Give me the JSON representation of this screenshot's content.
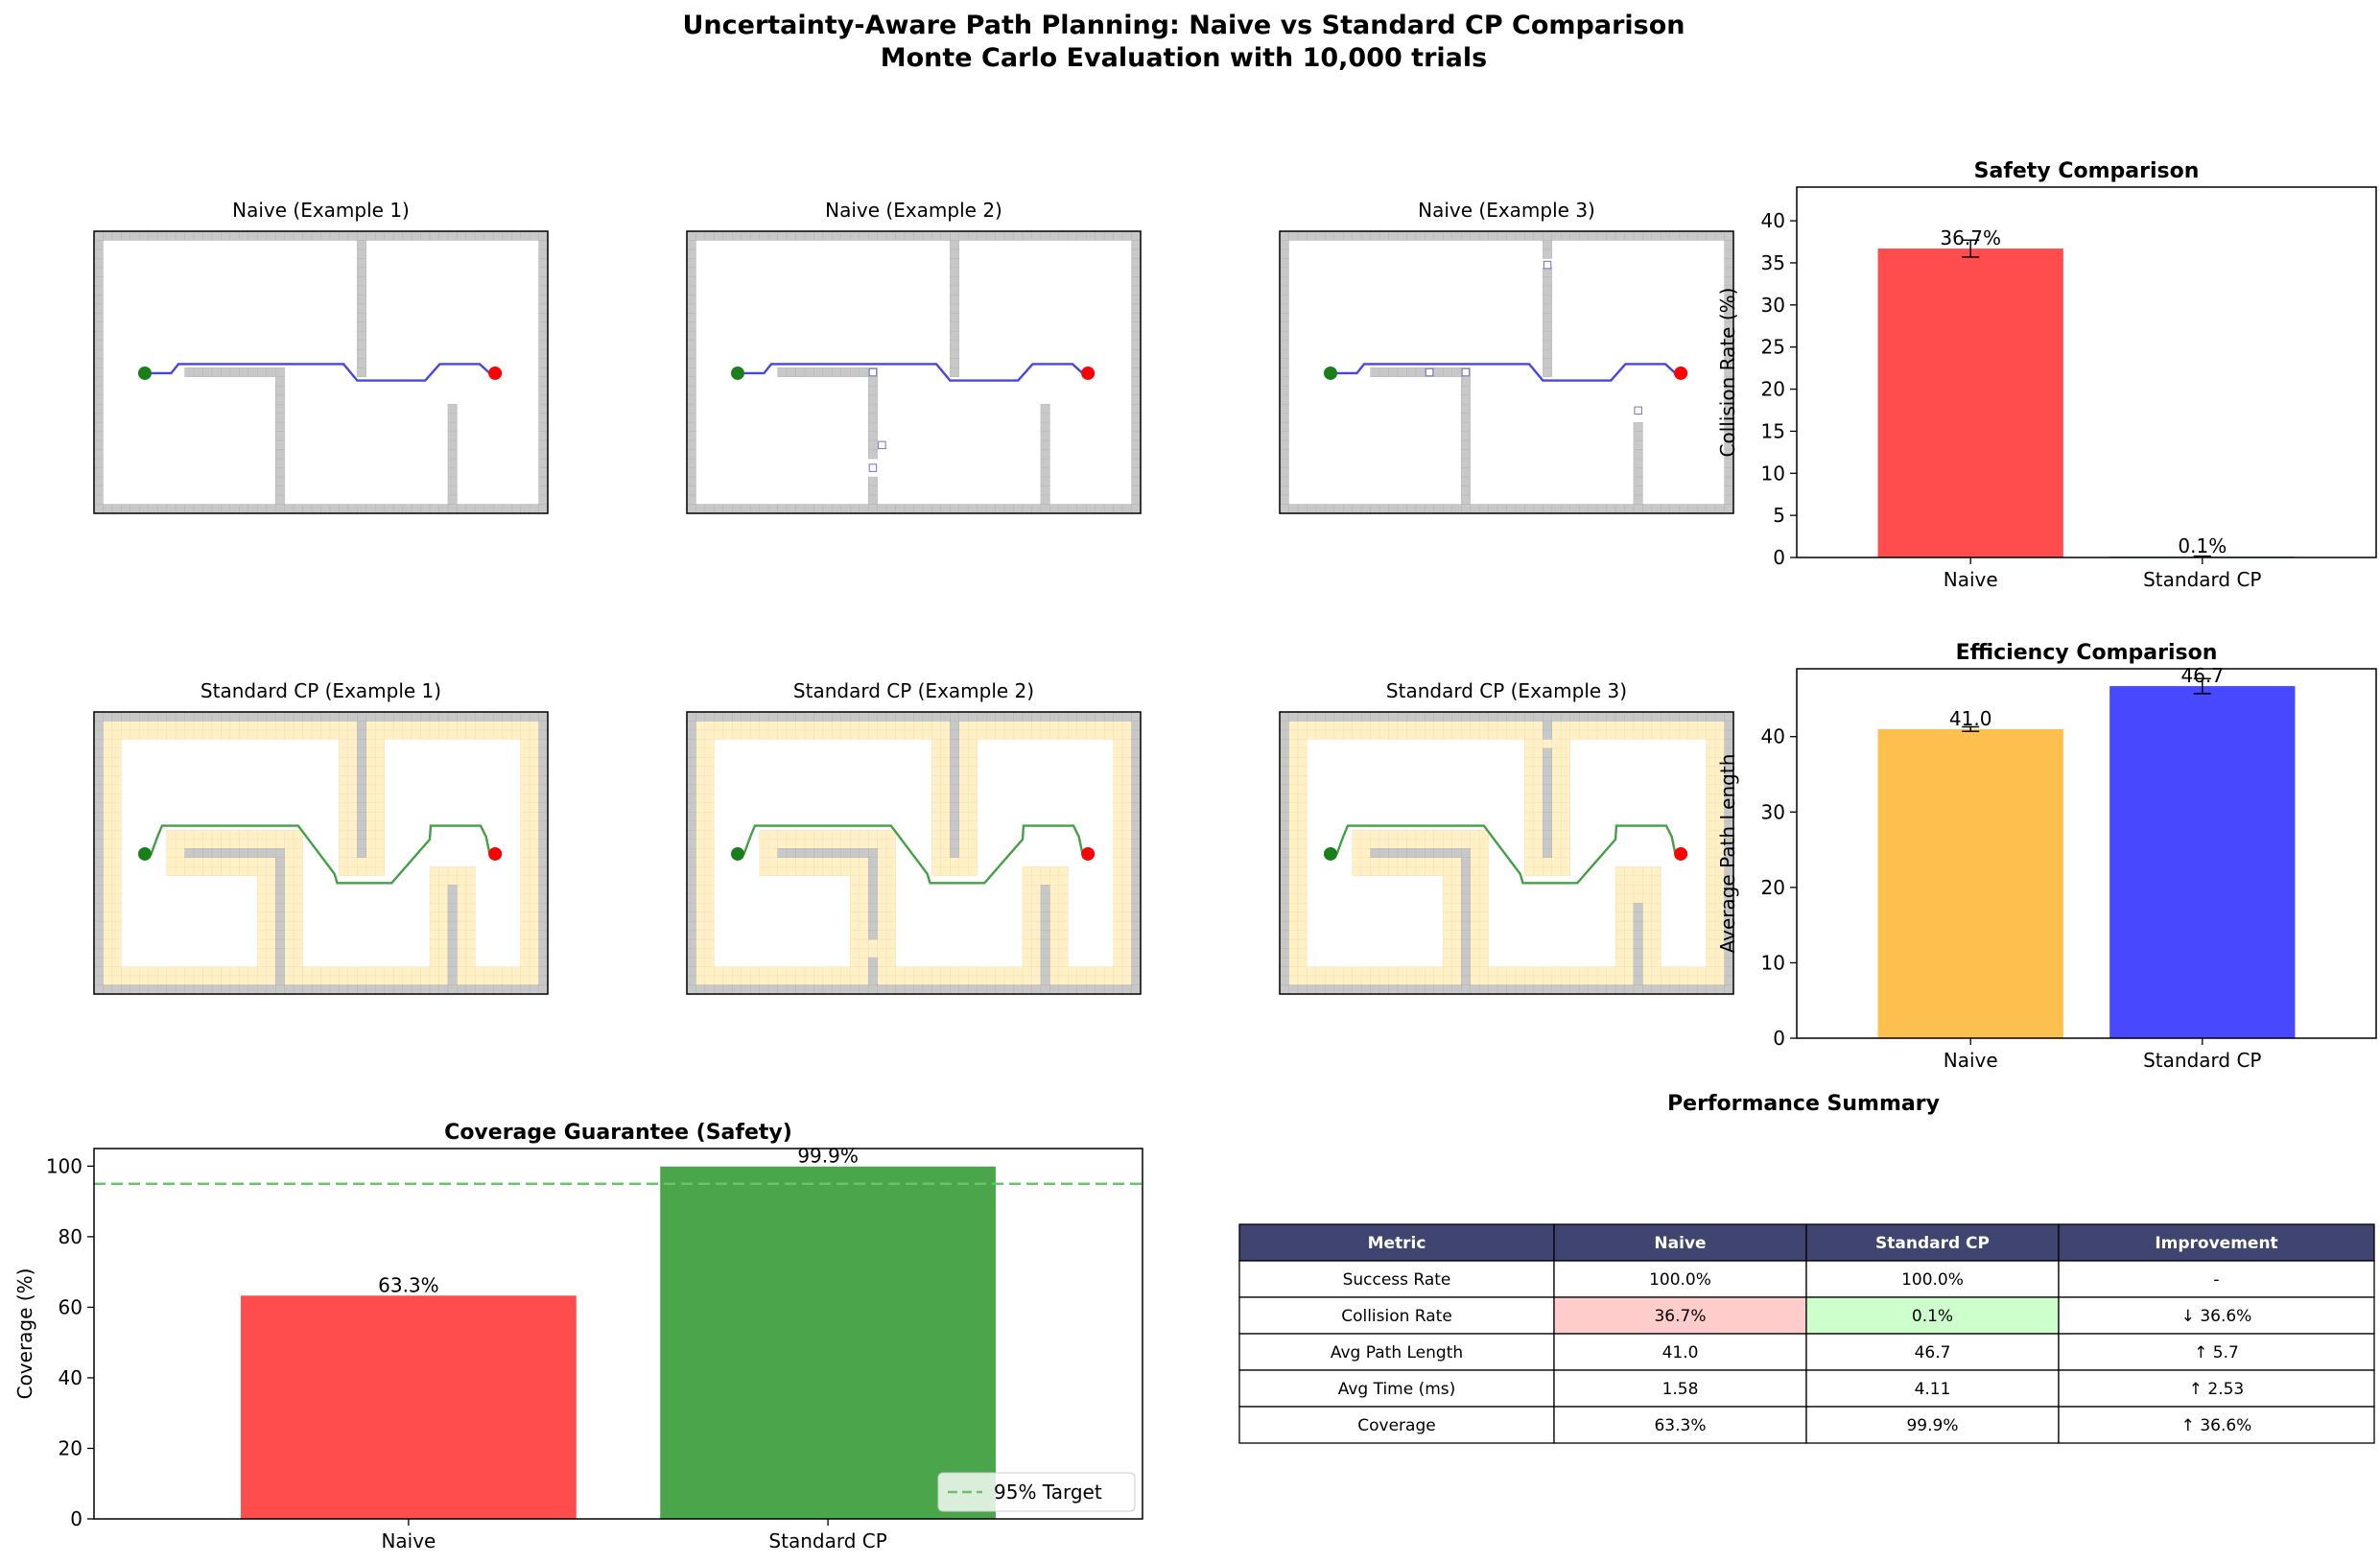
{
  "figure": {
    "title_line1": "Uncertainty-Aware Path Planning: Naive vs Standard CP Comparison",
    "title_line2": "Monte Carlo Evaluation with 10,000 trials"
  },
  "colors": {
    "naive_red": "#ff4d4d",
    "cp_green": "#4ba64b",
    "naive_orange": "#fdbf4d",
    "cp_blue": "#4848ff",
    "wall_gray": "#c8c8c8",
    "inflation_tan": "#fff0c8",
    "naive_path": "#4646e6",
    "cp_path": "#44a044",
    "start_marker": "#1a7f1a",
    "goal_marker": "#ff0000",
    "table_header": "#3f4470",
    "cell_bad": "#ffcccc",
    "cell_good": "#ccffcc",
    "target_line": "#6cc26c"
  },
  "maps": {
    "naive_titles": [
      "Naive (Example 1)",
      "Naive (Example 2)",
      "Naive (Example 3)"
    ],
    "cp_titles": [
      "Standard CP (Example 1)",
      "Standard CP (Example 2)",
      "Standard CP (Example 3)"
    ],
    "icons": {
      "start": "start-circle-icon",
      "goal": "goal-circle-icon"
    }
  },
  "chart_data": [
    {
      "type": "bar",
      "title": "Safety Comparison",
      "xlabel": "",
      "ylabel": "Collision Rate (%)",
      "categories": [
        "Naive",
        "Standard CP"
      ],
      "values": [
        36.7,
        0.1
      ],
      "errors": [
        1.0,
        0.05
      ],
      "labels": [
        "36.7%",
        "0.1%"
      ],
      "ylim": [
        0,
        44
      ],
      "yticks": [
        0,
        5,
        10,
        15,
        20,
        25,
        30,
        35,
        40
      ],
      "colors": [
        "#ff4d4d",
        "#4ba64b"
      ]
    },
    {
      "type": "bar",
      "title": "Efficiency Comparison",
      "xlabel": "",
      "ylabel": "Average Path Length",
      "categories": [
        "Naive",
        "Standard CP"
      ],
      "values": [
        41.0,
        46.7
      ],
      "errors": [
        0.3,
        1.0
      ],
      "labels": [
        "41.0",
        "46.7"
      ],
      "ylim": [
        0,
        49
      ],
      "yticks": [
        0,
        10,
        20,
        30,
        40
      ],
      "colors": [
        "#fdbf4d",
        "#4848ff"
      ]
    },
    {
      "type": "bar",
      "title": "Coverage Guarantee (Safety)",
      "xlabel": "",
      "ylabel": "Coverage (%)",
      "categories": [
        "Naive",
        "Standard CP"
      ],
      "values": [
        63.3,
        99.9
      ],
      "labels": [
        "63.3%",
        "99.9%"
      ],
      "ylim": [
        0,
        105
      ],
      "yticks": [
        0,
        20,
        40,
        60,
        80,
        100
      ],
      "colors": [
        "#ff4d4d",
        "#4ba64b"
      ],
      "reference_line": {
        "value": 95,
        "label": "95% Target"
      },
      "legend": "lower-right"
    },
    {
      "type": "table",
      "title": "Performance Summary",
      "columns": [
        "Metric",
        "Naive",
        "Standard CP",
        "Improvement"
      ],
      "rows": [
        [
          "Success Rate",
          "100.0%",
          "100.0%",
          "-"
        ],
        [
          "Collision Rate",
          "36.7%",
          "0.1%",
          "↓ 36.6%"
        ],
        [
          "Avg Path Length",
          "41.0",
          "46.7",
          "↑ 5.7"
        ],
        [
          "Avg Time (ms)",
          "1.58",
          "4.11",
          "↑ 2.53"
        ],
        [
          "Coverage",
          "63.3%",
          "99.9%",
          "↑ 36.6%"
        ]
      ]
    }
  ]
}
